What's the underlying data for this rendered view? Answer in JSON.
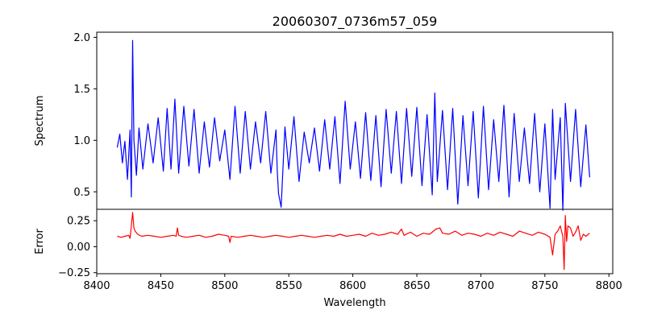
{
  "figure": {
    "title": "20060307_0736m57_059",
    "xlabel": "Wavelength"
  },
  "colors": {
    "spectrum": "#0000ff",
    "error": "#ff0000",
    "axes": "#000000",
    "background": "#ffffff"
  },
  "chart_data": [
    {
      "type": "line",
      "name": "spectrum-panel",
      "ylabel": "Spectrum",
      "xlim": [
        8400,
        8803
      ],
      "ylim": [
        0.33,
        2.05
      ],
      "xticks": [
        8400,
        8450,
        8500,
        8550,
        8600,
        8650,
        8700,
        8750,
        8800
      ],
      "yticks": [
        0.5,
        1.0,
        1.5,
        2.0
      ],
      "ytick_labels": [
        "0.5",
        "1.0",
        "1.5",
        "2.0"
      ],
      "grid": false,
      "series": [
        {
          "color": "#0000ff",
          "x": [
            8416,
            8418,
            8420,
            8422,
            8424,
            8426,
            8427,
            8428,
            8429,
            8431,
            8433,
            8436,
            8440,
            8444,
            8448,
            8452,
            8455,
            8458,
            8461,
            8464,
            8468,
            8472,
            8476,
            8480,
            8484,
            8488,
            8492,
            8496,
            8500,
            8504,
            8508,
            8512,
            8516,
            8520,
            8524,
            8528,
            8532,
            8536,
            8540,
            8541,
            8542,
            8544,
            8547,
            8550,
            8554,
            8558,
            8562,
            8566,
            8570,
            8574,
            8578,
            8582,
            8586,
            8590,
            8594,
            8598,
            8602,
            8606,
            8610,
            8614,
            8618,
            8622,
            8626,
            8630,
            8634,
            8638,
            8642,
            8646,
            8650,
            8654,
            8658,
            8662,
            8664,
            8666,
            8670,
            8674,
            8678,
            8682,
            8686,
            8690,
            8694,
            8698,
            8702,
            8706,
            8710,
            8714,
            8718,
            8722,
            8726,
            8730,
            8734,
            8738,
            8742,
            8746,
            8750,
            8754,
            8756,
            8758,
            8762,
            8764,
            8766,
            8770,
            8774,
            8778,
            8782,
            8785
          ],
          "y": [
            0.93,
            1.06,
            0.78,
            0.99,
            0.62,
            1.1,
            0.45,
            1.97,
            1.0,
            0.66,
            1.12,
            0.72,
            1.16,
            0.78,
            1.22,
            0.7,
            1.31,
            0.72,
            1.4,
            0.68,
            1.33,
            0.75,
            1.3,
            0.68,
            1.18,
            0.74,
            1.22,
            0.8,
            1.1,
            0.62,
            1.33,
            0.68,
            1.28,
            0.72,
            1.18,
            0.78,
            1.28,
            0.68,
            1.1,
            0.7,
            0.48,
            0.35,
            1.13,
            0.72,
            1.23,
            0.6,
            1.08,
            0.78,
            1.12,
            0.7,
            1.2,
            0.72,
            1.23,
            0.58,
            1.38,
            0.72,
            1.18,
            0.63,
            1.27,
            0.61,
            1.24,
            0.55,
            1.3,
            0.68,
            1.28,
            0.58,
            1.31,
            0.65,
            1.32,
            0.56,
            1.25,
            0.47,
            1.46,
            0.6,
            1.29,
            0.52,
            1.31,
            0.38,
            1.24,
            0.56,
            1.28,
            0.44,
            1.33,
            0.52,
            1.2,
            0.6,
            1.34,
            0.45,
            1.26,
            0.6,
            1.12,
            0.58,
            1.26,
            0.5,
            1.16,
            0.34,
            1.3,
            0.62,
            1.22,
            0.32,
            1.36,
            0.6,
            1.3,
            0.55,
            1.15,
            0.64
          ]
        }
      ]
    },
    {
      "type": "line",
      "name": "error-panel",
      "ylabel": "Error",
      "xlim": [
        8400,
        8803
      ],
      "ylim": [
        -0.26,
        0.36
      ],
      "xticks": [
        8400,
        8450,
        8500,
        8550,
        8600,
        8650,
        8700,
        8750,
        8800
      ],
      "xtick_labels": [
        "8400",
        "8450",
        "8500",
        "8550",
        "8600",
        "8650",
        "8700",
        "8750",
        "8800"
      ],
      "yticks": [
        -0.25,
        0.0,
        0.25
      ],
      "ytick_labels": [
        "−0.25",
        "0.00",
        "0.25"
      ],
      "grid": false,
      "series": [
        {
          "color": "#ff0000",
          "x": [
            8416,
            8419,
            8422,
            8425,
            8426,
            8427,
            8428,
            8429,
            8430,
            8432,
            8435,
            8440,
            8445,
            8450,
            8455,
            8460,
            8462,
            8463,
            8464,
            8466,
            8470,
            8475,
            8480,
            8485,
            8490,
            8495,
            8500,
            8503,
            8504,
            8505,
            8510,
            8515,
            8520,
            8525,
            8530,
            8535,
            8540,
            8545,
            8550,
            8555,
            8560,
            8565,
            8570,
            8575,
            8580,
            8585,
            8590,
            8595,
            8600,
            8605,
            8610,
            8615,
            8620,
            8625,
            8630,
            8635,
            8638,
            8640,
            8645,
            8650,
            8655,
            8660,
            8665,
            8668,
            8670,
            8675,
            8680,
            8685,
            8690,
            8695,
            8700,
            8705,
            8710,
            8715,
            8720,
            8725,
            8730,
            8735,
            8740,
            8745,
            8750,
            8754,
            8756,
            8758,
            8760,
            8762,
            8764,
            8765,
            8766,
            8767,
            8768,
            8770,
            8772,
            8774,
            8776,
            8778,
            8780,
            8782,
            8785
          ],
          "y": [
            0.1,
            0.09,
            0.1,
            0.11,
            0.08,
            0.2,
            0.33,
            0.18,
            0.15,
            0.12,
            0.1,
            0.11,
            0.1,
            0.09,
            0.1,
            0.11,
            0.1,
            0.18,
            0.11,
            0.1,
            0.09,
            0.1,
            0.11,
            0.09,
            0.1,
            0.12,
            0.11,
            0.1,
            0.04,
            0.1,
            0.09,
            0.1,
            0.11,
            0.1,
            0.09,
            0.1,
            0.11,
            0.1,
            0.09,
            0.1,
            0.11,
            0.1,
            0.09,
            0.1,
            0.11,
            0.1,
            0.12,
            0.1,
            0.11,
            0.12,
            0.1,
            0.13,
            0.11,
            0.12,
            0.14,
            0.12,
            0.17,
            0.11,
            0.14,
            0.1,
            0.13,
            0.12,
            0.17,
            0.18,
            0.13,
            0.12,
            0.15,
            0.11,
            0.13,
            0.12,
            0.1,
            0.13,
            0.11,
            0.14,
            0.12,
            0.1,
            0.15,
            0.13,
            0.11,
            0.14,
            0.12,
            0.09,
            -0.08,
            0.12,
            0.15,
            0.2,
            0.1,
            -0.22,
            0.3,
            0.05,
            0.2,
            0.18,
            0.1,
            0.14,
            0.2,
            0.06,
            0.12,
            0.1,
            0.13
          ]
        }
      ]
    }
  ]
}
